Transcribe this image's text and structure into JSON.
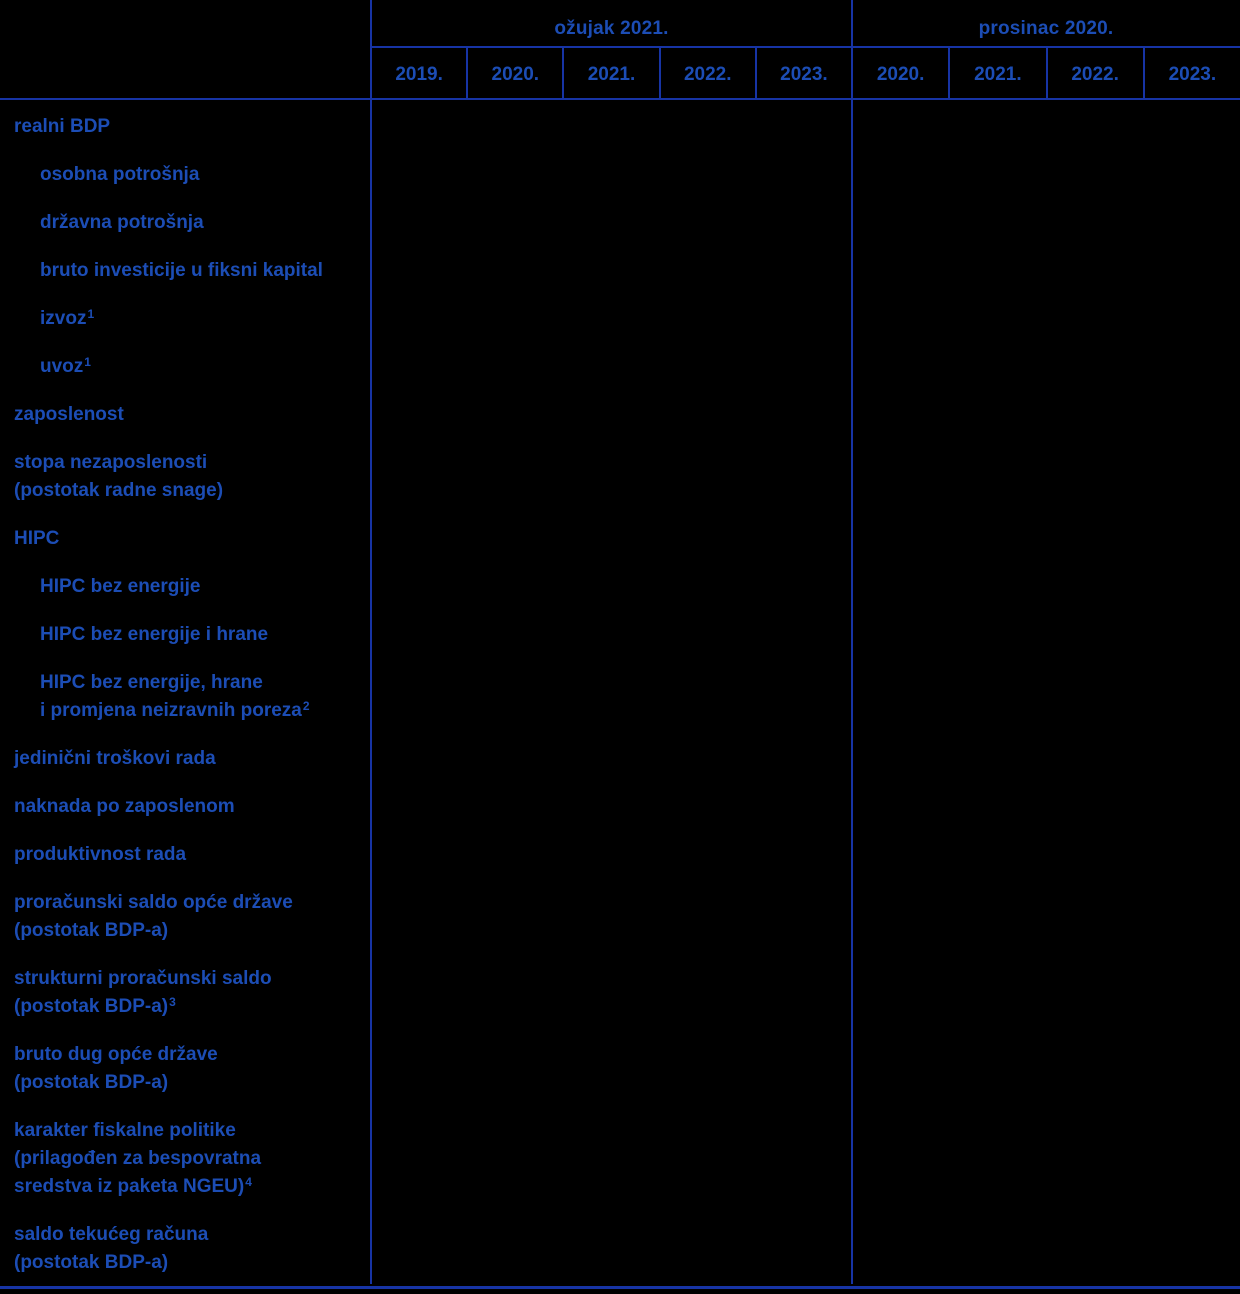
{
  "colors": {
    "background": "#000000",
    "text_blue": "#1C4DB5",
    "line_blue": "#1734A5"
  },
  "header": {
    "groups": [
      {
        "label": "ožujak 2021.",
        "years": [
          "2019.",
          "2020.",
          "2021.",
          "2022.",
          "2023."
        ]
      },
      {
        "label": "prosinac 2020.",
        "years": [
          "2020.",
          "2021.",
          "2022.",
          "2023."
        ]
      }
    ]
  },
  "rows": [
    {
      "indent": false,
      "lines": [
        {
          "text": "realni BDP"
        }
      ]
    },
    {
      "indent": true,
      "lines": [
        {
          "text": "osobna potrošnja"
        }
      ]
    },
    {
      "indent": true,
      "lines": [
        {
          "text": "državna potrošnja"
        }
      ]
    },
    {
      "indent": true,
      "lines": [
        {
          "text": "bruto investicije u fiksni kapital"
        }
      ]
    },
    {
      "indent": true,
      "lines": [
        {
          "text": "izvoz",
          "sup": "1"
        }
      ]
    },
    {
      "indent": true,
      "lines": [
        {
          "text": "uvoz",
          "sup": "1"
        }
      ]
    },
    {
      "indent": false,
      "lines": [
        {
          "text": "zaposlenost"
        }
      ]
    },
    {
      "indent": false,
      "lines": [
        {
          "text": "stopa nezaposlenosti"
        },
        {
          "text": "(postotak radne snage)"
        }
      ]
    },
    {
      "indent": false,
      "lines": [
        {
          "text": "HIPC"
        }
      ]
    },
    {
      "indent": true,
      "lines": [
        {
          "text": "HIPC bez energije"
        }
      ]
    },
    {
      "indent": true,
      "lines": [
        {
          "text": "HIPC bez energije i hrane"
        }
      ]
    },
    {
      "indent": true,
      "lines": [
        {
          "text": "HIPC bez energije, hrane"
        },
        {
          "text": "i promjena neizravnih poreza",
          "sup": "2"
        }
      ]
    },
    {
      "indent": false,
      "lines": [
        {
          "text": "jedinični troškovi rada"
        }
      ]
    },
    {
      "indent": false,
      "lines": [
        {
          "text": "naknada po zaposlenom"
        }
      ]
    },
    {
      "indent": false,
      "lines": [
        {
          "text": "produktivnost rada"
        }
      ]
    },
    {
      "indent": false,
      "lines": [
        {
          "text": "proračunski saldo opće države"
        },
        {
          "text": "(postotak BDP-a)"
        }
      ]
    },
    {
      "indent": false,
      "lines": [
        {
          "text": "strukturni proračunski saldo"
        },
        {
          "text": "(postotak BDP-a)",
          "sup": "3"
        }
      ]
    },
    {
      "indent": false,
      "lines": [
        {
          "text": "bruto dug opće države"
        },
        {
          "text": "(postotak BDP-a)"
        }
      ]
    },
    {
      "indent": false,
      "lines": [
        {
          "text": "karakter fiskalne politike"
        },
        {
          "text": "(prilagođen za bespovratna"
        },
        {
          "text": "sredstva iz paketa NGEU)",
          "sup": "4"
        }
      ]
    },
    {
      "indent": false,
      "lines": [
        {
          "text": "saldo tekućeg računa"
        },
        {
          "text": "(postotak BDP-a)"
        }
      ]
    }
  ]
}
